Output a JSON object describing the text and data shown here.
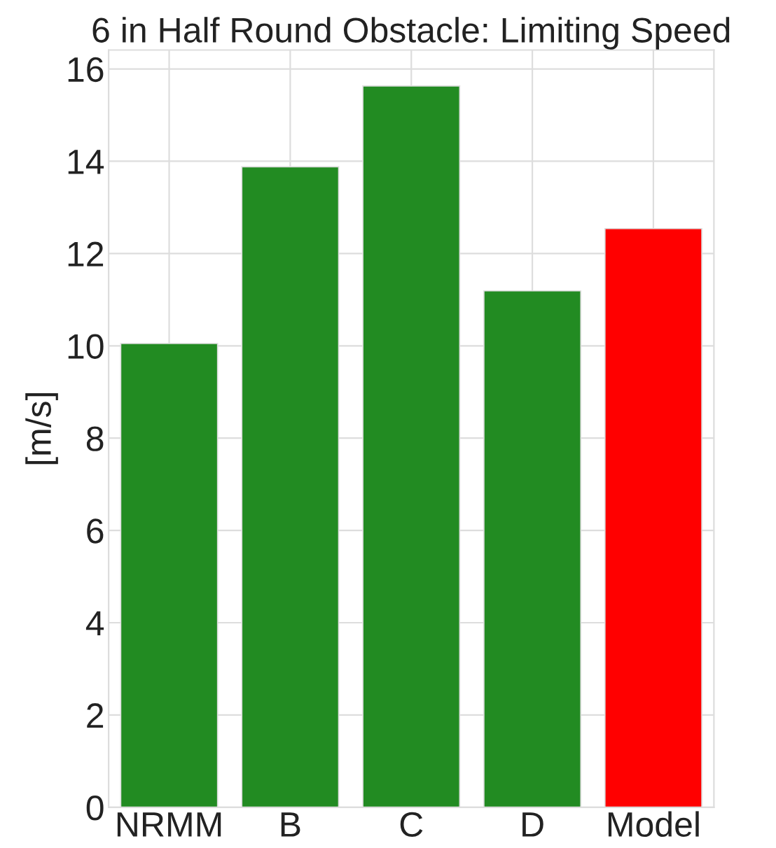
{
  "chart_data": {
    "type": "bar",
    "title": "6 in Half Round Obstacle: Limiting Speed",
    "ylabel": "[m/s]",
    "categories": [
      "NRMM",
      "B",
      "C",
      "D",
      "Model"
    ],
    "values": [
      10.05,
      13.88,
      15.63,
      11.19,
      12.54
    ],
    "colors": [
      "#228b22",
      "#228b22",
      "#228b22",
      "#228b22",
      "#ff0000"
    ],
    "ylim": [
      0,
      16.41
    ],
    "yticks": [
      0,
      2,
      4,
      6,
      8,
      10,
      12,
      14,
      16
    ],
    "grid": true
  }
}
